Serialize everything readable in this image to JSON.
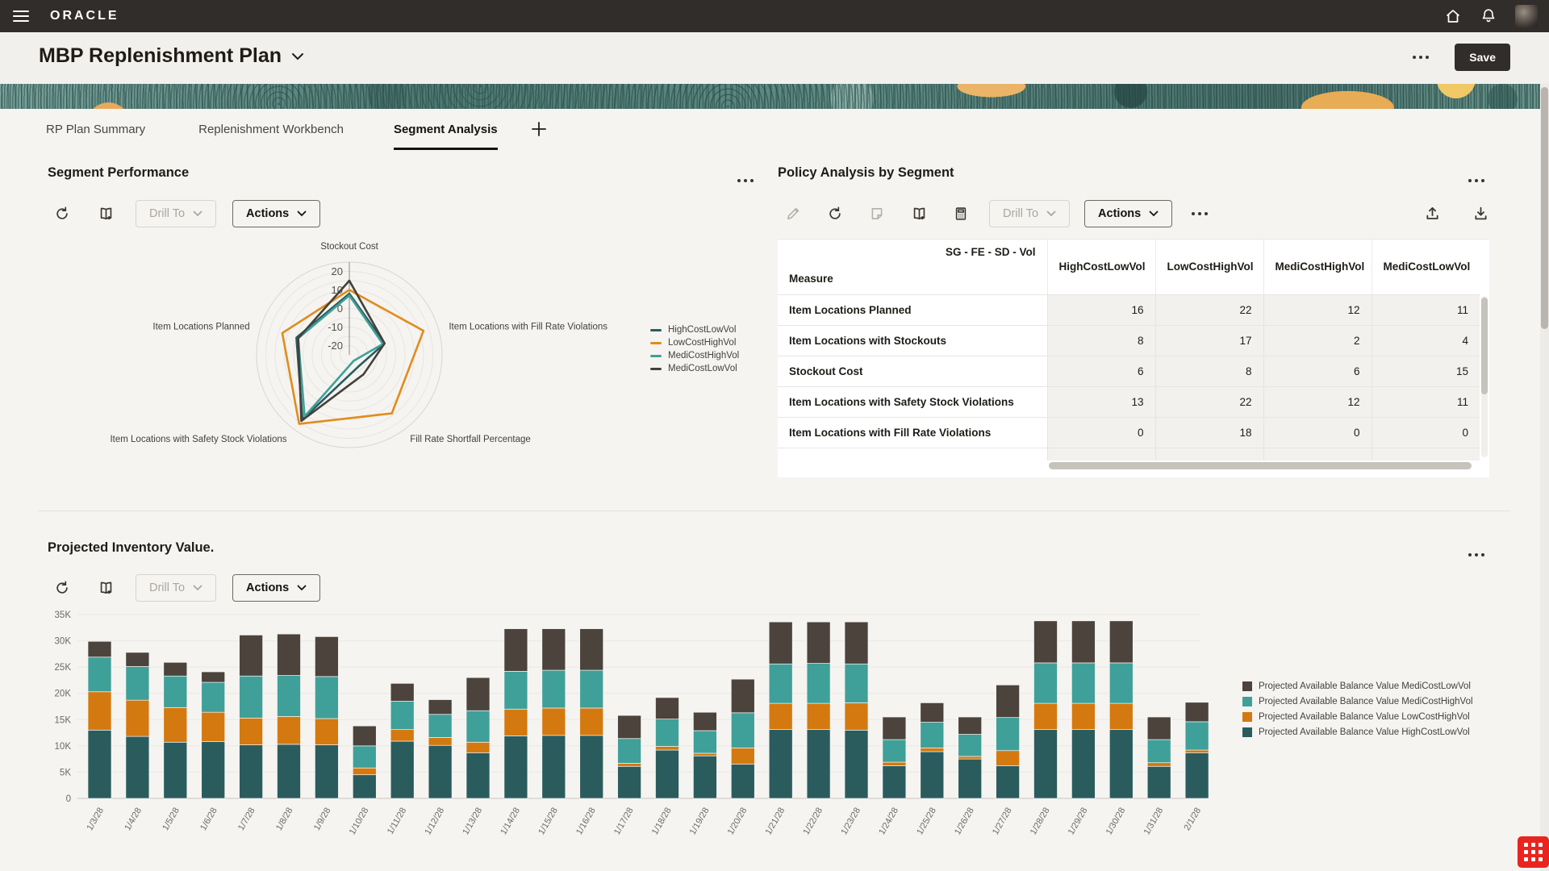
{
  "topbar": {
    "brand": "ORACLE"
  },
  "page_header": {
    "title": "MBP Replenishment Plan",
    "save_label": "Save"
  },
  "tabs": [
    {
      "label": "RP Plan Summary",
      "active": false
    },
    {
      "label": "Replenishment Workbench",
      "active": false
    },
    {
      "label": "Segment Analysis",
      "active": true
    }
  ],
  "colors": {
    "HighCostLowVol": "#2A5C5E",
    "LowCostHighVol": "#D4790F",
    "MediCostHighVol": "#3FA099",
    "MediCostLowVol": "#4B433C",
    "radar_LowCostHighVol": "#E08C1E",
    "accent_dark": "#312D2A"
  },
  "panels": {
    "segment_performance": {
      "title": "Segment Performance",
      "toolbar": {
        "icons": [
          "refresh-icon",
          "bookmark-add-icon"
        ],
        "drill_to": "Drill To",
        "actions": "Actions"
      },
      "chart_data": {
        "type": "radar",
        "axes": [
          "Stockout Cost",
          "Item Locations with Fill Rate Violations",
          "Fill Rate Shortfall Percentage",
          "Item Locations with Safety Stock Violations",
          "Item Locations Planned"
        ],
        "tick_labels": [
          20,
          10,
          0,
          -10,
          -20
        ],
        "scale_min": -25,
        "scale_max": 25,
        "series": [
          {
            "name": "HighCostLowVol",
            "color": "#2A5C5E",
            "values": [
              8,
              -5,
              -17,
              18,
              5
            ]
          },
          {
            "name": "LowCostHighVol",
            "color": "#E08C1E",
            "values": [
              10,
              17,
              14,
              21,
              13
            ]
          },
          {
            "name": "MediCostHighVol",
            "color": "#3FA099",
            "values": [
              7,
              -6,
              -21,
              16,
              4
            ]
          },
          {
            "name": "MediCostLowVol",
            "color": "#44403B",
            "values": [
              15,
              -5,
              -12,
              19,
              4
            ]
          }
        ],
        "legend_position": "right"
      }
    },
    "policy_analysis": {
      "title": "Policy Analysis by Segment",
      "toolbar": {
        "icons": [
          "edit-icon",
          "refresh-icon",
          "note-icon",
          "bookmark-add-icon",
          "calculator-icon"
        ],
        "drill_to": "Drill To",
        "actions": "Actions",
        "right_icons": [
          "upload-icon",
          "download-icon"
        ]
      },
      "table": {
        "group_header": "SG - FE - SD - Vol",
        "row_dimension": "Measure",
        "columns": [
          "HighCostLowVol",
          "LowCostHighVol",
          "MediCostHighVol",
          "MediCostLowVol"
        ],
        "rows": [
          {
            "measure": "Item Locations Planned",
            "values": [
              16,
              22,
              12,
              11
            ]
          },
          {
            "measure": "Item Locations with Stockouts",
            "values": [
              8,
              17,
              2,
              4
            ]
          },
          {
            "measure": "Stockout Cost",
            "values": [
              6,
              8,
              6,
              15
            ]
          },
          {
            "measure": "Item Locations with Safety Stock Violations",
            "values": [
              13,
              22,
              12,
              11
            ]
          },
          {
            "measure": "Item Locations with Fill Rate Violations",
            "values": [
              0,
              18,
              0,
              0
            ]
          }
        ]
      }
    },
    "projected_inventory": {
      "title": "Projected Inventory Value.",
      "toolbar": {
        "icons": [
          "refresh-icon",
          "bookmark-add-icon"
        ],
        "drill_to": "Drill To",
        "actions": "Actions"
      },
      "chart_data": {
        "type": "bar",
        "stacked": true,
        "unit": "K",
        "ylim": [
          0,
          35
        ],
        "ytick_labels": [
          "0",
          "5K",
          "10K",
          "15K",
          "20K",
          "25K",
          "30K",
          "35K"
        ],
        "categories": [
          "1/3/28",
          "1/4/28",
          "1/5/28",
          "1/6/28",
          "1/7/28",
          "1/8/28",
          "1/9/28",
          "1/10/28",
          "1/11/28",
          "1/12/28",
          "1/13/28",
          "1/14/28",
          "1/15/28",
          "1/16/28",
          "1/17/28",
          "1/18/28",
          "1/19/28",
          "1/20/28",
          "1/21/28",
          "1/22/28",
          "1/23/28",
          "1/24/28",
          "1/25/28",
          "1/26/28",
          "1/27/28",
          "1/28/28",
          "1/29/28",
          "1/30/28",
          "1/31/28",
          "2/1/28"
        ],
        "series": [
          {
            "name": "Projected Available Balance Value HighCostLowVol",
            "color": "#2A5C5E",
            "values": [
              13.0,
              11.8,
              10.7,
              10.8,
              10.2,
              10.3,
              10.2,
              4.5,
              10.9,
              10.1,
              8.7,
              11.9,
              12.0,
              12.0,
              6.1,
              9.2,
              8.1,
              6.5,
              13.1,
              13.1,
              13.0,
              6.2,
              8.9,
              7.5,
              6.2,
              13.1,
              13.1,
              13.1,
              6.1,
              8.7
            ]
          },
          {
            "name": "Projected Available Balance Value LowCostHighVol",
            "color": "#D4790F",
            "values": [
              7.3,
              6.9,
              6.6,
              5.6,
              5.1,
              5.3,
              5.0,
              1.3,
              2.2,
              1.5,
              2.0,
              5.1,
              5.2,
              5.2,
              0.6,
              0.7,
              0.5,
              3.1,
              5.0,
              5.0,
              5.2,
              0.7,
              0.7,
              0.5,
              2.9,
              5.0,
              5.0,
              5.0,
              0.7,
              0.5
            ]
          },
          {
            "name": "Projected Available Balance Value MediCostHighVol",
            "color": "#3FA099",
            "values": [
              6.6,
              6.4,
              6.0,
              5.7,
              8.0,
              7.8,
              8.0,
              4.2,
              5.4,
              4.4,
              6.0,
              7.2,
              7.2,
              7.2,
              4.7,
              5.2,
              4.3,
              6.7,
              7.5,
              7.6,
              7.4,
              4.3,
              4.9,
              4.2,
              6.3,
              7.7,
              7.7,
              7.7,
              4.4,
              5.4
            ]
          },
          {
            "name": "Projected Available Balance Value MediCostLowVol",
            "color": "#4B433C",
            "values": [
              3.0,
              2.7,
              2.6,
              2.0,
              7.8,
              7.9,
              7.6,
              3.8,
              3.4,
              2.8,
              6.3,
              8.1,
              7.9,
              7.9,
              4.4,
              4.1,
              3.5,
              6.4,
              8.0,
              7.9,
              8.0,
              4.3,
              3.7,
              3.3,
              6.2,
              8.0,
              8.0,
              8.0,
              4.3,
              3.7
            ]
          }
        ],
        "legend_order": [
          "Projected Available Balance Value MediCostLowVol",
          "Projected Available Balance Value MediCostHighVol",
          "Projected Available Balance Value LowCostHighVol",
          "Projected Available Balance Value HighCostLowVol"
        ],
        "legend_position": "right",
        "grid": true
      }
    }
  }
}
